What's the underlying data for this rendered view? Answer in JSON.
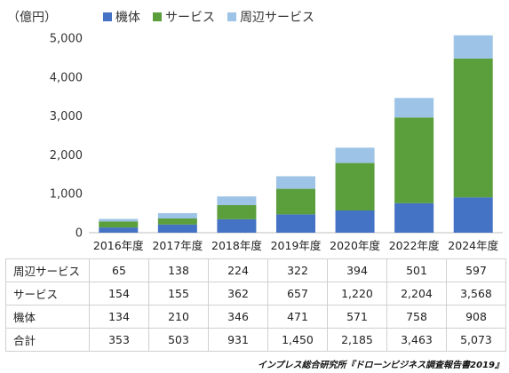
{
  "chart_data": {
    "type": "bar",
    "stacked": true,
    "unit_label": "（億円）",
    "categories": [
      "2016年度",
      "2017年度",
      "2018年度",
      "2019年度",
      "2020年度",
      "2022年度",
      "2024年度"
    ],
    "series": [
      {
        "name": "機体",
        "color": "#4472c4",
        "values": [
          134,
          210,
          346,
          471,
          571,
          758,
          908
        ]
      },
      {
        "name": "サービス",
        "color": "#5b9e3c",
        "values": [
          154,
          155,
          362,
          657,
          1220,
          2204,
          3568
        ]
      },
      {
        "name": "周辺サービス",
        "color": "#9dc3e6",
        "values": [
          65,
          138,
          224,
          322,
          394,
          501,
          597
        ]
      }
    ],
    "ylim": [
      0,
      5000
    ],
    "yticks": [
      "0",
      "1,000",
      "2,000",
      "3,000",
      "4,000",
      "5,000"
    ],
    "legend": "top",
    "grid": false
  },
  "table": {
    "rows": [
      {
        "label": "周辺サービス",
        "values": [
          "65",
          "138",
          "224",
          "322",
          "394",
          "501",
          "597"
        ]
      },
      {
        "label": "サービス",
        "values": [
          "154",
          "155",
          "362",
          "657",
          "1,220",
          "2,204",
          "3,568"
        ]
      },
      {
        "label": "機体",
        "values": [
          "134",
          "210",
          "346",
          "471",
          "571",
          "758",
          "908"
        ]
      },
      {
        "label": "合計",
        "values": [
          "353",
          "503",
          "931",
          "1,450",
          "2,185",
          "3,463",
          "5,073"
        ]
      }
    ]
  },
  "source": "インプレス総合研究所『ドローンビジネス調査報告書2019』"
}
